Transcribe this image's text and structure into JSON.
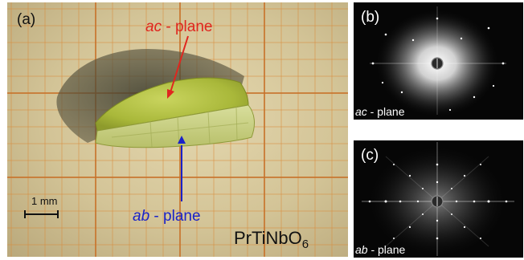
{
  "panel_a": {
    "letter": "(a)",
    "ac_plane": {
      "prefix": "ac",
      "suffix": " - plane"
    },
    "ab_plane": {
      "prefix": "ab",
      "suffix": " - plane"
    },
    "scale_bar": "1 mm",
    "formula_main": "PrTiNbO",
    "formula_sub": "6"
  },
  "panel_b": {
    "letter": "(b)",
    "caption_prefix": "ac",
    "caption_suffix": " - plane"
  },
  "panel_c": {
    "letter": "(c)",
    "caption_prefix": "ab",
    "caption_suffix": " - plane"
  },
  "colors": {
    "ac_label": "#e0261f",
    "ab_label": "#1a22c8",
    "grid_line": "#d98a3a",
    "crystal": "#b9c64a"
  }
}
